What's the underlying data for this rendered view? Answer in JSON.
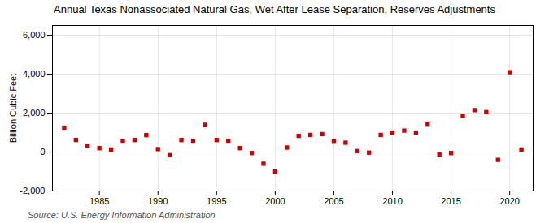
{
  "chart_data": {
    "type": "scatter",
    "title": "Annual Texas Nonassociated Natural Gas, Wet After Lease Separation, Reserves Adjustments",
    "ylabel": "Billion Cubic Feet",
    "annotations": [
      "Source: U.S. Energy Information Administration"
    ],
    "x": [
      1982,
      1983,
      1984,
      1985,
      1986,
      1987,
      1988,
      1989,
      1990,
      1991,
      1992,
      1993,
      1994,
      1995,
      1996,
      1997,
      1998,
      1999,
      2000,
      2001,
      2002,
      2003,
      2004,
      2005,
      2006,
      2007,
      2008,
      2009,
      2010,
      2011,
      2012,
      2013,
      2014,
      2015,
      2016,
      2017,
      2018,
      2019,
      2020,
      2021
    ],
    "values": [
      1250,
      620,
      330,
      200,
      130,
      580,
      620,
      870,
      150,
      -160,
      620,
      580,
      1400,
      620,
      580,
      200,
      -50,
      -600,
      -1000,
      230,
      830,
      880,
      920,
      570,
      480,
      50,
      -30,
      880,
      1000,
      1100,
      1000,
      1450,
      -130,
      -50,
      1850,
      2150,
      2050,
      -400,
      4100,
      130
    ],
    "color": "#cc0000",
    "marker": "square",
    "xlim": [
      1981,
      2022
    ],
    "ylim": [
      -2000,
      6500
    ],
    "xticks": [
      1985,
      1990,
      1995,
      2000,
      2005,
      2010,
      2015,
      2020
    ],
    "yticks": [
      {
        "value": -2000,
        "label": "-2,000"
      },
      0,
      {
        "value": 2000,
        "label": "2,000"
      },
      {
        "value": 4000,
        "label": "4,000"
      },
      {
        "value": 6000,
        "label": "6,000"
      }
    ],
    "grid": true
  }
}
